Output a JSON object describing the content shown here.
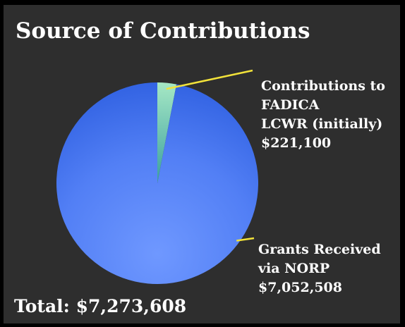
{
  "chart_data": {
    "type": "pie",
    "title": "Source of Contributions",
    "total_label": "Total: $7,273,608",
    "slices": [
      {
        "label_lines": [
          "Contributions to",
          "FADICA",
          "LCWR (initially)",
          "$221,100"
        ],
        "value": 221100,
        "color": "#88d6a8"
      },
      {
        "label_lines": [
          "Grants Received",
          "via NORP",
          "$7,052,508"
        ],
        "value": 7052508,
        "color": "#4a7df0"
      }
    ],
    "leader_line_color": "#f2e23a"
  }
}
